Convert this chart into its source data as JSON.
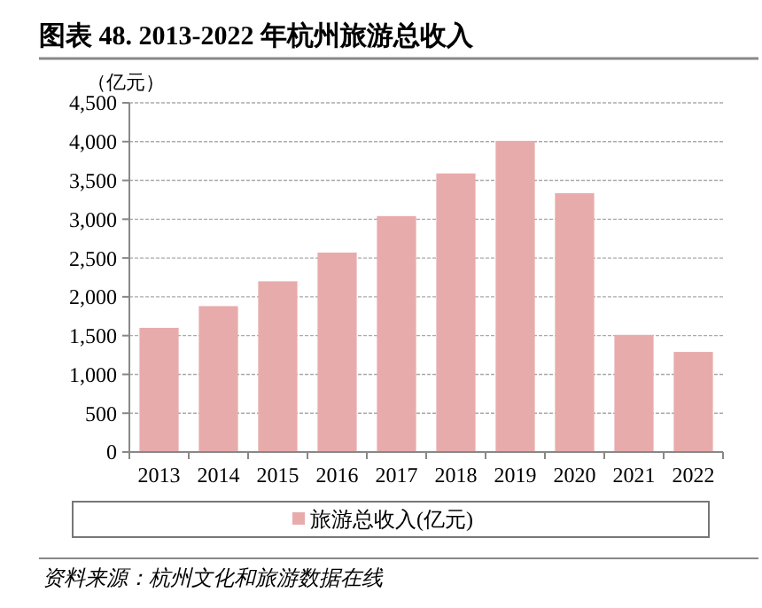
{
  "chart_data": {
    "type": "bar",
    "title": "图表 48. 2013-2022 年杭州旅游总收入",
    "ylabel": "（亿元）",
    "categories": [
      "2013",
      "2014",
      "2015",
      "2016",
      "2017",
      "2018",
      "2019",
      "2020",
      "2021",
      "2022"
    ],
    "series": [
      {
        "name": "旅游总收入(亿元)",
        "color": "#e8abab",
        "values": [
          1600,
          1880,
          2200,
          2570,
          3040,
          3590,
          4010,
          3335,
          1510,
          1290
        ]
      }
    ],
    "ylim": [
      0,
      4500
    ],
    "yticks": [
      {
        "value": 0,
        "label": "0"
      },
      {
        "value": 500,
        "label": "500"
      },
      {
        "value": 1000,
        "label": "1,000"
      },
      {
        "value": 1500,
        "label": "1,500"
      },
      {
        "value": 2000,
        "label": "2,000"
      },
      {
        "value": 2500,
        "label": "2,500"
      },
      {
        "value": 3000,
        "label": "3,000"
      },
      {
        "value": 3500,
        "label": "3,500"
      },
      {
        "value": 4000,
        "label": "4,000"
      },
      {
        "value": 4500,
        "label": "4,500"
      }
    ],
    "grid": "y",
    "legend": "bottom",
    "annotations": [
      "资料来源：杭州文化和旅游数据在线"
    ]
  }
}
